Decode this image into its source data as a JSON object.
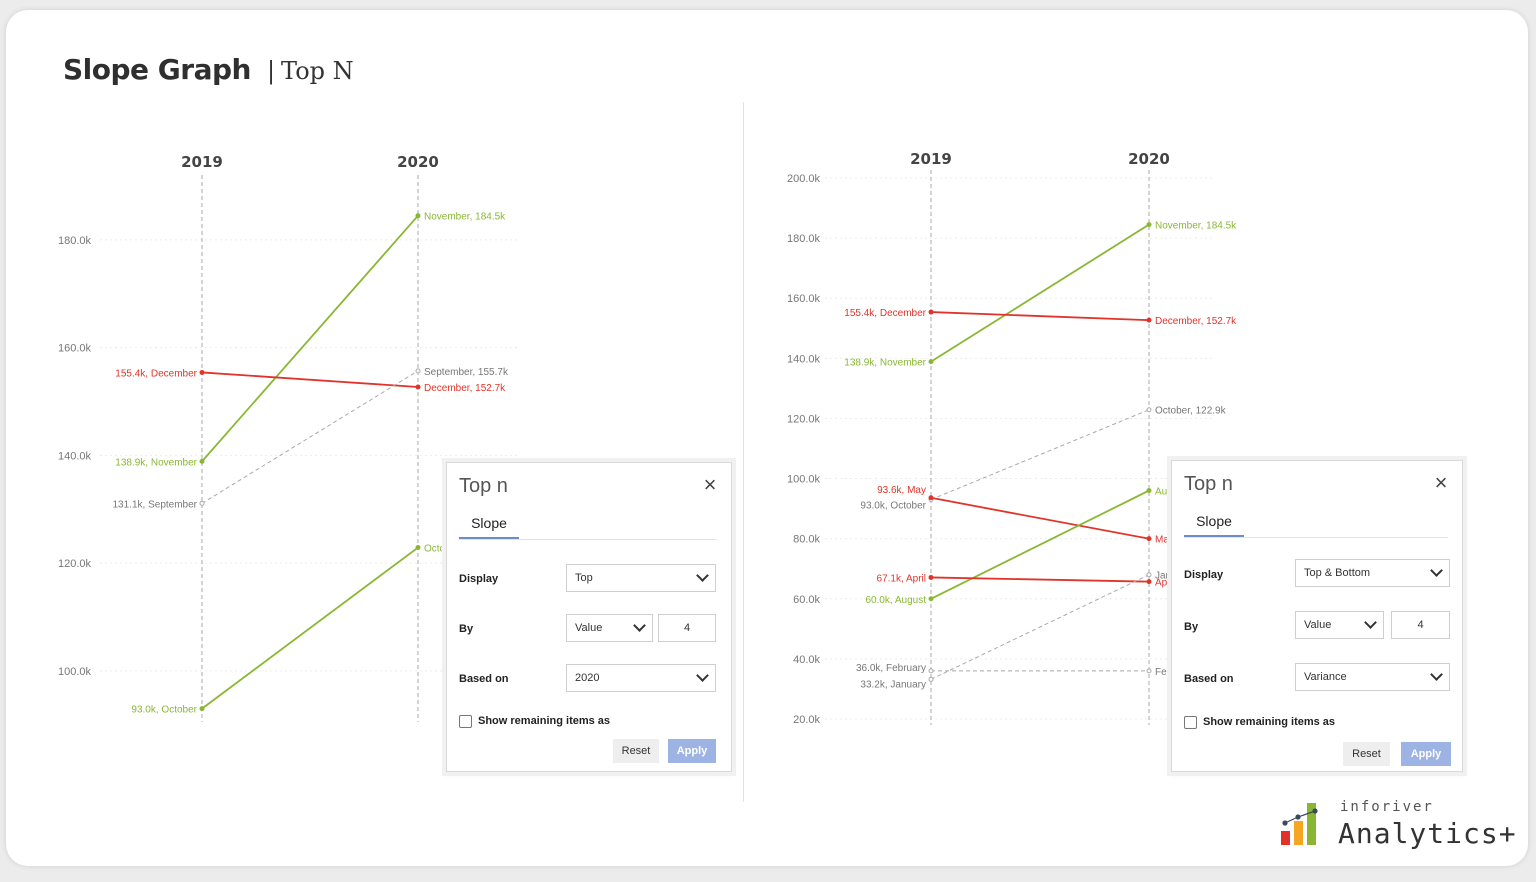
{
  "header": {
    "title": "Slope Graph",
    "separator": "|",
    "subtitle": "Top N"
  },
  "chart_data": [
    {
      "type": "line",
      "subtype": "slope",
      "categories": [
        "2019",
        "2020"
      ],
      "y_ticks": [
        "100.0k",
        "120.0k",
        "140.0k",
        "160.0k",
        "180.0k"
      ],
      "ylim": [
        93,
        184.5
      ],
      "grid": true,
      "series": [
        {
          "name": "November",
          "values": [
            138.9,
            184.5
          ],
          "color": "#8ab733",
          "style": "solid",
          "left_label": "138.9k, November",
          "right_label": "November, 184.5k"
        },
        {
          "name": "December",
          "values": [
            155.4,
            152.7
          ],
          "color": "#e0342a",
          "style": "solid",
          "left_label": "155.4k, December",
          "right_label": "December, 152.7k"
        },
        {
          "name": "September",
          "values": [
            131.1,
            155.7
          ],
          "color": "#a9a9a9",
          "style": "dashed",
          "left_label": "131.1k, September",
          "right_label": "September, 155.7k"
        },
        {
          "name": "October",
          "values": [
            93.0,
            122.9
          ],
          "color": "#8ab733",
          "style": "solid",
          "left_label": "93.0k, October",
          "right_label": "Octo"
        }
      ]
    },
    {
      "type": "line",
      "subtype": "slope",
      "categories": [
        "2019",
        "2020"
      ],
      "y_ticks": [
        "20.0k",
        "40.0k",
        "60.0k",
        "80.0k",
        "100.0k",
        "120.0k",
        "140.0k",
        "160.0k",
        "180.0k",
        "200.0k"
      ],
      "ylim": [
        20,
        200
      ],
      "grid": true,
      "series": [
        {
          "name": "November",
          "values": [
            138.9,
            184.5
          ],
          "color": "#8ab733",
          "style": "solid",
          "left_label": "138.9k, November",
          "right_label": "November, 184.5k"
        },
        {
          "name": "December",
          "values": [
            155.4,
            152.7
          ],
          "color": "#e0342a",
          "style": "solid",
          "left_label": "155.4k, December",
          "right_label": "December, 152.7k"
        },
        {
          "name": "October",
          "values": [
            93.0,
            122.9
          ],
          "color": "#a9a9a9",
          "style": "dashed",
          "left_label": "93.0k, October",
          "right_label": "October, 122.9k"
        },
        {
          "name": "May",
          "values": [
            93.6,
            80.0
          ],
          "color": "#e0342a",
          "style": "solid",
          "left_label": "93.6k, May",
          "right_label": "Ma"
        },
        {
          "name": "August",
          "values": [
            60.0,
            96.0
          ],
          "color": "#8ab733",
          "style": "solid",
          "left_label": "60.0k, August",
          "right_label": "Au"
        },
        {
          "name": "April",
          "values": [
            67.1,
            65.7
          ],
          "color": "#e0342a",
          "style": "solid",
          "left_label": "67.1k, April",
          "right_label": "Ap"
        },
        {
          "name": "January",
          "values": [
            33.2,
            68.0
          ],
          "color": "#a9a9a9",
          "style": "dashed",
          "left_label": "33.2k, January",
          "right_label": "Jan"
        },
        {
          "name": "February",
          "values": [
            36.0,
            36.0
          ],
          "color": "#a9a9a9",
          "style": "dashed",
          "left_label": "36.0k, February",
          "right_label": "Feb"
        }
      ]
    }
  ],
  "panels": [
    {
      "title": "Top n",
      "tab": "Slope",
      "display_label": "Display",
      "display_value": "Top",
      "by_label": "By",
      "by_value": "Value",
      "by_count": "4",
      "based_label": "Based on",
      "based_value": "2020",
      "checkbox_label": "Show remaining items as",
      "reset_label": "Reset",
      "apply_label": "Apply"
    },
    {
      "title": "Top n",
      "tab": "Slope",
      "display_label": "Display",
      "display_value": "Top & Bottom",
      "by_label": "By",
      "by_value": "Value",
      "by_count": "4",
      "based_label": "Based on",
      "based_value": "Variance",
      "checkbox_label": "Show remaining items as",
      "reset_label": "Reset",
      "apply_label": "Apply"
    }
  ],
  "logo": {
    "small": "inforiver",
    "big": "Analytics+",
    "colors": [
      "#e0342a",
      "#f5a623",
      "#8ab733",
      "#3b4a5a"
    ]
  }
}
